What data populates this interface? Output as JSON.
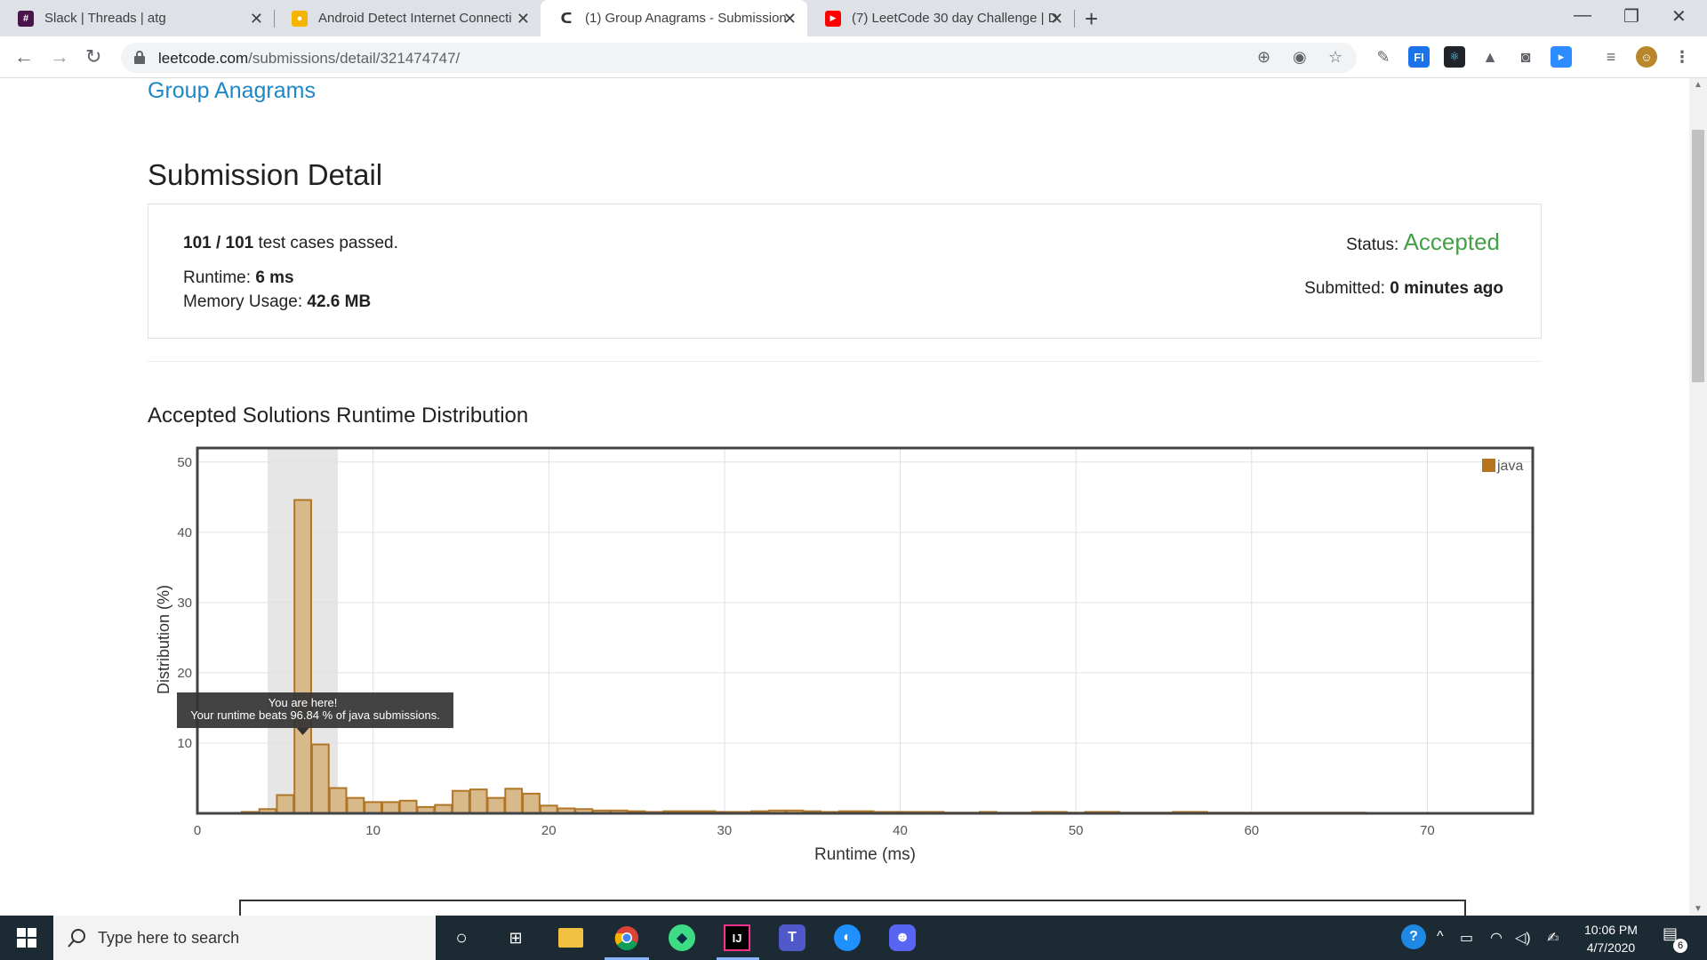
{
  "browser": {
    "tabs": [
      {
        "title": "Slack | Threads | atg",
        "fav_color": "#4a154b",
        "fav_glyph": "#"
      },
      {
        "title": "Android Detect Internet Connecti",
        "fav_color": "#f4b400",
        "fav_glyph": "●"
      },
      {
        "title": "(1) Group Anagrams - Submission",
        "fav_color": "#ffffff",
        "fav_glyph": "ᑕ"
      },
      {
        "title": "(7) LeetCode 30 day Challenge | D",
        "fav_color": "#ff0000",
        "fav_glyph": "▶"
      }
    ],
    "url_host": "leetcode.com",
    "url_path": "/submissions/detail/321474747/"
  },
  "page": {
    "problem_title": "Group Anagrams",
    "heading": "Submission Detail",
    "tests_passed": "101 / 101",
    "tests_suffix": " test cases passed.",
    "runtime_label": "Runtime: ",
    "runtime_value": "6 ms",
    "memory_label": "Memory Usage: ",
    "memory_value": "42.6 MB",
    "status_label": "Status: ",
    "status_value": "Accepted",
    "submitted_label": "Submitted: ",
    "submitted_value": "0 minutes ago",
    "dist_heading": "Accepted Solutions Runtime Distribution"
  },
  "chart_data": {
    "type": "bar",
    "xlabel": "Runtime (ms)",
    "ylabel": "Distribution (%)",
    "xlim": [
      0,
      76
    ],
    "ylim": [
      0,
      52
    ],
    "xticks": [
      0,
      10,
      20,
      30,
      40,
      50,
      60,
      70
    ],
    "yticks": [
      10,
      20,
      30,
      40,
      50
    ],
    "legend": "java",
    "legend_position": "top-right",
    "highlight_range": [
      4,
      8
    ],
    "tooltip_line1": "You are here!",
    "tooltip_line2": "Your runtime beats 96.84 % of java submissions.",
    "bar_color": "#d8b98a",
    "bar_edge": "#b07626",
    "x": [
      3,
      4,
      5,
      6,
      7,
      8,
      9,
      10,
      11,
      12,
      13,
      14,
      15,
      16,
      17,
      18,
      19,
      20,
      21,
      22,
      23,
      24,
      25,
      26,
      27,
      28,
      29,
      30,
      31,
      32,
      33,
      34,
      35,
      36,
      37,
      38,
      39,
      40,
      41,
      42,
      43,
      44,
      45,
      46,
      47,
      48,
      49,
      50,
      51,
      52,
      53,
      54,
      55,
      56,
      57,
      58,
      59,
      60,
      61,
      62,
      63,
      64,
      65,
      66
    ],
    "values": [
      0.2,
      0.6,
      2.6,
      44.6,
      9.8,
      3.6,
      2.2,
      1.6,
      1.6,
      1.8,
      0.9,
      1.2,
      3.2,
      3.4,
      2.2,
      3.5,
      2.8,
      1.1,
      0.7,
      0.6,
      0.4,
      0.4,
      0.3,
      0.2,
      0.3,
      0.3,
      0.3,
      0.2,
      0.2,
      0.3,
      0.4,
      0.4,
      0.3,
      0.2,
      0.3,
      0.3,
      0.2,
      0.2,
      0.2,
      0.2,
      0.1,
      0.1,
      0.2,
      0.1,
      0.1,
      0.2,
      0.2,
      0.1,
      0.2,
      0.2,
      0.1,
      0.1,
      0.1,
      0.2,
      0.2,
      0.1,
      0.1,
      0.1,
      0.1,
      0.1,
      0.1,
      0.1,
      0.1,
      0.1
    ]
  },
  "taskbar": {
    "search_placeholder": "Type here to search",
    "time": "10:06 PM",
    "date": "4/7/2020",
    "notifications": "6"
  }
}
